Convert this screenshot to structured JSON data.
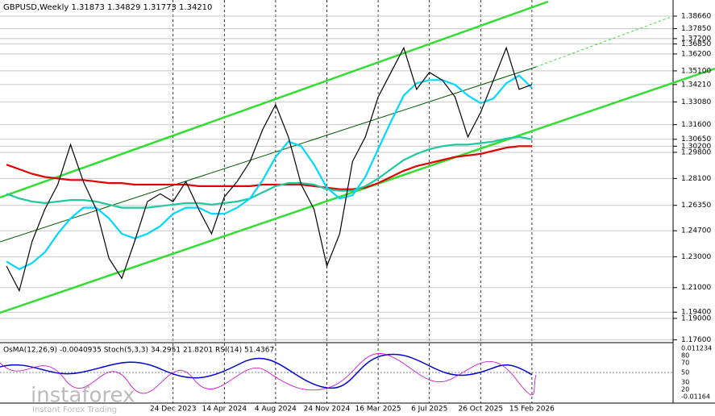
{
  "chart_data": {
    "type": "line",
    "title": "GBPUSD,Weekly  1.31873 1.34829 1.31773 1.34210",
    "indicator_label": "OsMA(12,26,9) -0.0040935  Stoch(5,3,3) 34.2951 21.8201  RSI(14) 51.4367",
    "watermark": "instaforex",
    "watermark_tagline": "Instant Forex Trading",
    "categories": [
      null,
      null,
      null,
      null,
      null,
      null,
      null,
      null,
      null,
      null,
      null,
      null,
      null,
      "24 Dec 2023",
      null,
      null,
      null,
      "14 Apr 2024",
      null,
      null,
      null,
      "4 Aug 2024",
      null,
      null,
      null,
      "24 Nov 2024",
      null,
      null,
      null,
      "16 Mar 2025",
      null,
      null,
      null,
      "6 Jul 2025",
      null,
      null,
      null,
      "26 Oct 2025",
      null,
      null,
      null,
      "15 Feb 2026"
    ],
    "series": [
      {
        "color": "#000000",
        "values": [
          1.224,
          1.208,
          1.24,
          1.261,
          1.277,
          1.303,
          1.279,
          1.261,
          1.229,
          1.216,
          1.24,
          1.266,
          1.271,
          1.266,
          1.279,
          1.261,
          1.245,
          1.269,
          1.279,
          1.292,
          1.313,
          1.329,
          1.308,
          1.277,
          1.261,
          1.224,
          1.245,
          1.292,
          1.308,
          1.334,
          1.35,
          1.366,
          1.339,
          1.35,
          1.345,
          1.334,
          1.308,
          1.324,
          1.345,
          1.366,
          1.339,
          1.3421
        ]
      },
      {
        "color": "#00d8ff",
        "values": [
          1.227,
          1.222,
          1.226,
          1.233,
          1.245,
          1.255,
          1.262,
          1.262,
          1.255,
          1.245,
          1.242,
          1.245,
          1.25,
          1.258,
          1.262,
          1.262,
          1.258,
          1.258,
          1.262,
          1.268,
          1.28,
          1.295,
          1.305,
          1.302,
          1.29,
          1.275,
          1.268,
          1.27,
          1.282,
          1.3,
          1.318,
          1.335,
          1.343,
          1.345,
          1.345,
          1.342,
          1.335,
          1.33,
          1.333,
          1.343,
          1.348,
          1.34
        ]
      },
      {
        "color": "#20c8a0",
        "values": [
          1.271,
          1.268,
          1.266,
          1.265,
          1.266,
          1.267,
          1.267,
          1.266,
          1.264,
          1.262,
          1.262,
          1.262,
          1.263,
          1.264,
          1.265,
          1.265,
          1.264,
          1.265,
          1.266,
          1.268,
          1.272,
          1.276,
          1.278,
          1.278,
          1.277,
          1.274,
          1.273,
          1.273,
          1.276,
          1.281,
          1.287,
          1.293,
          1.297,
          1.3,
          1.302,
          1.303,
          1.303,
          1.304,
          1.305,
          1.307,
          1.308,
          1.3065
        ]
      },
      {
        "color": "#e00000",
        "values": [
          1.29,
          1.287,
          1.284,
          1.282,
          1.281,
          1.28,
          1.28,
          1.279,
          1.278,
          1.278,
          1.277,
          1.277,
          1.277,
          1.277,
          1.277,
          1.276,
          1.276,
          1.276,
          1.276,
          1.276,
          1.277,
          1.277,
          1.277,
          1.277,
          1.276,
          1.275,
          1.274,
          1.274,
          1.275,
          1.278,
          1.282,
          1.286,
          1.289,
          1.291,
          1.293,
          1.295,
          1.296,
          1.297,
          1.299,
          1.301,
          1.302,
          1.302
        ]
      }
    ],
    "ylim": [
      1.1742,
      1.3971
    ],
    "yticks": [
      {
        "value": 1.3866,
        "label": "1.38660"
      },
      {
        "value": 1.3785,
        "label": "1.37850"
      },
      {
        "value": 1.372,
        "label": "1.37200"
      },
      {
        "value": 1.3685,
        "label": "1.36850"
      },
      {
        "value": 1.362,
        "label": "1.36200"
      },
      {
        "value": 1.351,
        "label": "1.35100"
      },
      {
        "value": 1.3421,
        "label": "1.34210"
      },
      {
        "value": 1.3308,
        "label": "1.33080"
      },
      {
        "value": 1.316,
        "label": "1.31600"
      },
      {
        "value": 1.3065,
        "label": "1.30650"
      },
      {
        "value": 1.302,
        "label": "1.30200"
      },
      {
        "value": 1.298,
        "label": "1.29800"
      },
      {
        "value": 1.281,
        "label": "1.28100"
      },
      {
        "value": 1.2635,
        "label": "1.26350"
      },
      {
        "value": 1.247,
        "label": "1.24700"
      },
      {
        "value": 1.23,
        "label": "1.23000"
      },
      {
        "value": 1.21,
        "label": "1.21000"
      },
      {
        "value": 1.194,
        "label": "1.19400"
      },
      {
        "value": 1.19,
        "label": "1.19000"
      },
      {
        "value": 1.176,
        "label": "1.17600"
      }
    ],
    "oscillator_ticks": [
      "0.011234",
      "80",
      "70",
      "50",
      "30",
      "20",
      "-0.01164"
    ],
    "grid": true
  }
}
